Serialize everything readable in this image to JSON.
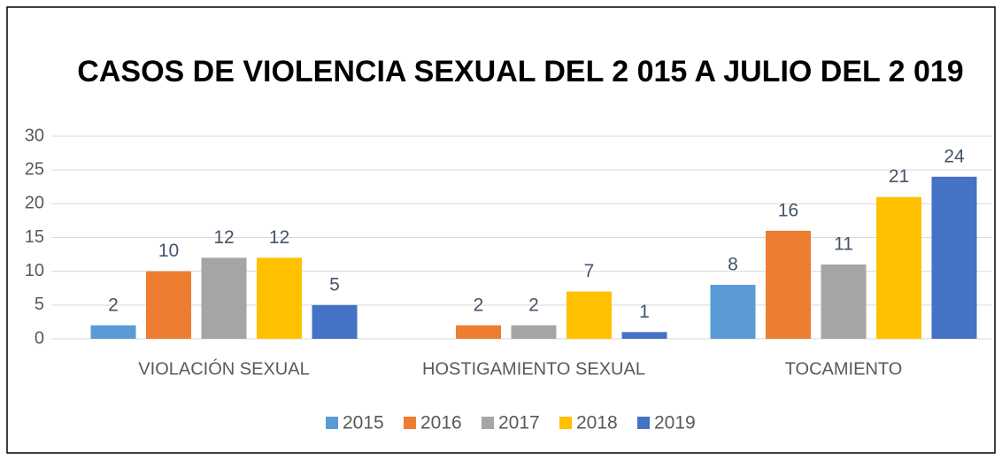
{
  "chart_data": {
    "type": "bar",
    "title": "CASOS DE VIOLENCIA SEXUAL DEL 2 015 A JULIO DEL  2 019",
    "categories": [
      "VIOLACIÓN SEXUAL",
      "HOSTIGAMIENTO SEXUAL",
      "TOCAMIENTO"
    ],
    "series": [
      {
        "name": "2015",
        "color": "#5b9bd5",
        "values": [
          2,
          null,
          8
        ]
      },
      {
        "name": "2016",
        "color": "#ed7d31",
        "values": [
          10,
          2,
          16
        ]
      },
      {
        "name": "2017",
        "color": "#a5a5a5",
        "values": [
          12,
          2,
          11
        ]
      },
      {
        "name": "2018",
        "color": "#ffc000",
        "values": [
          12,
          7,
          21
        ]
      },
      {
        "name": "2019",
        "color": "#4472c4",
        "values": [
          5,
          1,
          24
        ]
      }
    ],
    "ylim": [
      0,
      30
    ],
    "yticks": [
      0,
      5,
      10,
      15,
      20,
      25,
      30
    ],
    "grid": true,
    "legend": "bottom"
  }
}
